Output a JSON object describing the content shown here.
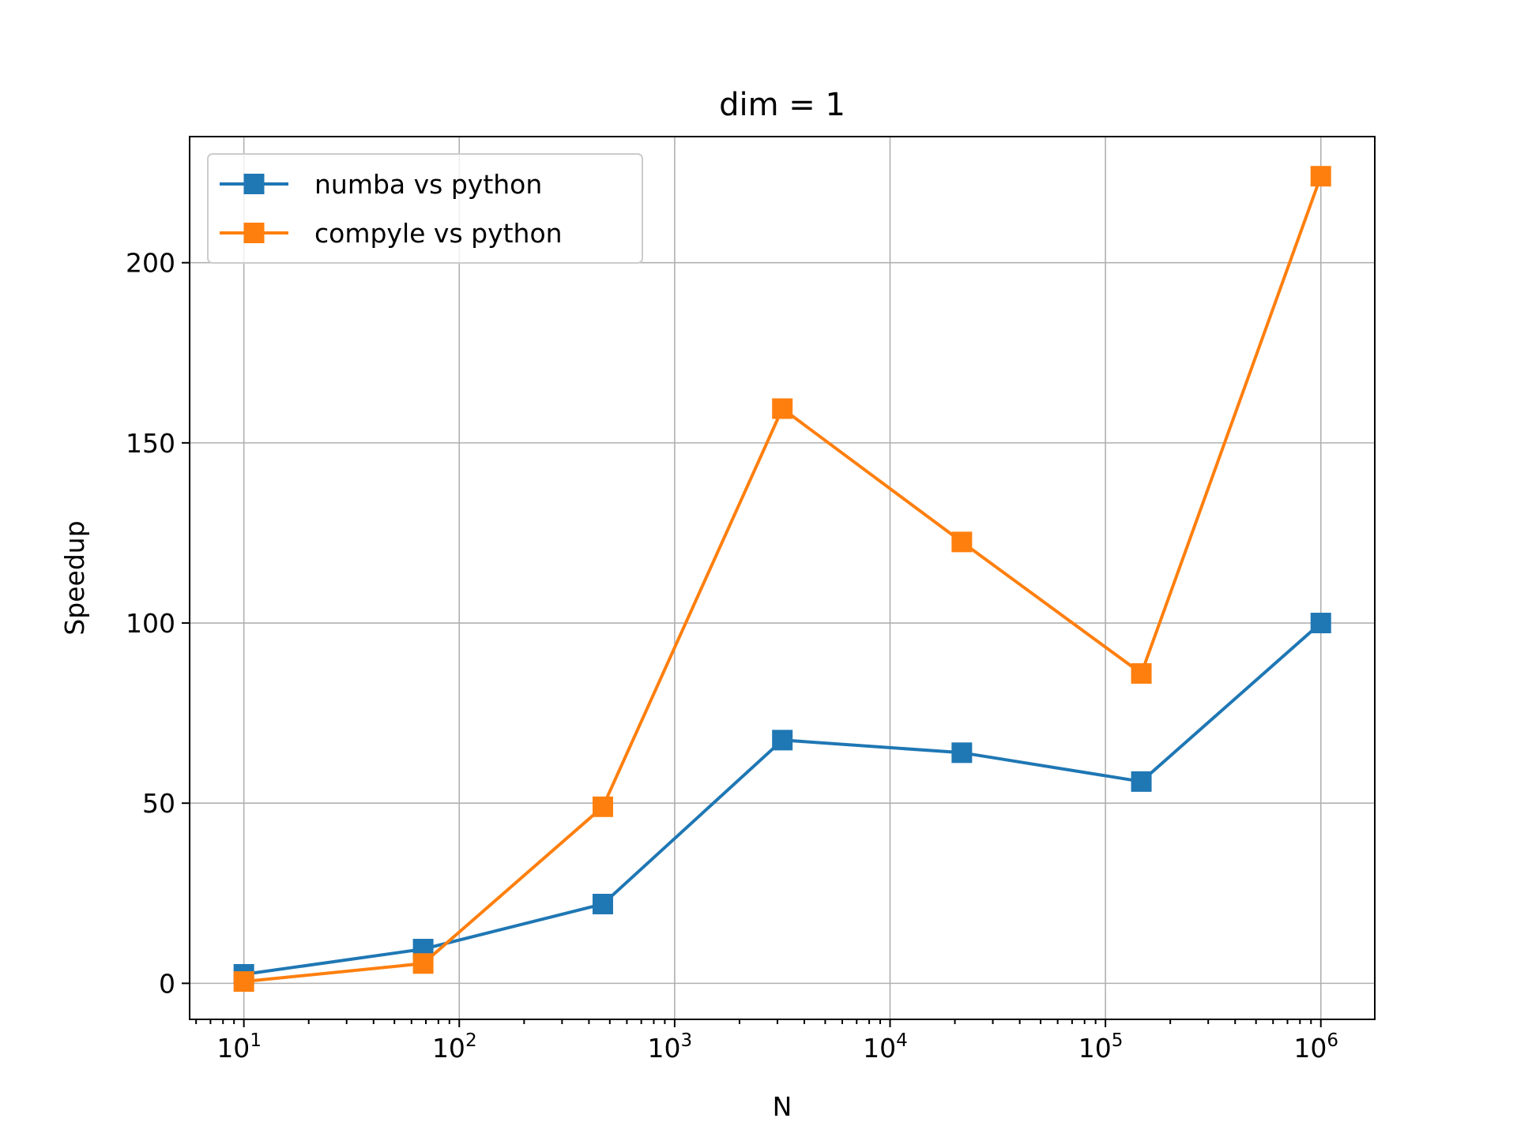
{
  "chart_data": {
    "type": "line",
    "title": "dim = 1",
    "xlabel": "N",
    "ylabel": "Speedup",
    "xscale": "log",
    "xlim": [
      5.6,
      1780000
    ],
    "ylim": [
      -10,
      235
    ],
    "grid": true,
    "legend_position": "top-left",
    "x": [
      10,
      68,
      464,
      3162,
      21544,
      146780,
      1000000
    ],
    "series": [
      {
        "name": "numba vs python",
        "color": "#1f77b4",
        "marker": "square",
        "values": [
          2.5,
          9.5,
          22,
          67.5,
          64,
          56,
          100
        ]
      },
      {
        "name": "compyle vs python",
        "color": "#ff7f0e",
        "marker": "square",
        "values": [
          0.5,
          5.5,
          49,
          159.5,
          122.5,
          86,
          224
        ]
      }
    ],
    "y_ticks": [
      "0",
      "50",
      "100",
      "150",
      "200"
    ],
    "y_tick_values": [
      0,
      50,
      100,
      150,
      200
    ],
    "x_ticks": [
      {
        "value": 10,
        "base": "10",
        "exp": "1"
      },
      {
        "value": 100,
        "base": "10",
        "exp": "2"
      },
      {
        "value": 1000,
        "base": "10",
        "exp": "3"
      },
      {
        "value": 10000,
        "base": "10",
        "exp": "4"
      },
      {
        "value": 100000,
        "base": "10",
        "exp": "5"
      },
      {
        "value": 1000000,
        "base": "10",
        "exp": "6"
      }
    ]
  }
}
